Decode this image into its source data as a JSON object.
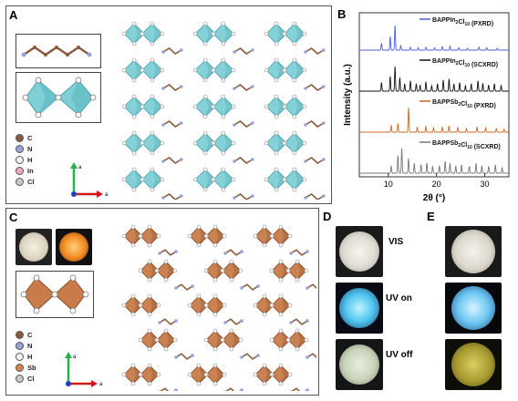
{
  "panels": {
    "a": "A",
    "b": "B",
    "c": "C",
    "d": "D",
    "e": "E"
  },
  "legend_a": [
    {
      "label": "C",
      "color": "#8a5a3c"
    },
    {
      "label": "N",
      "color": "#9aa0d8"
    },
    {
      "label": "H",
      "color": "#f2f2f2"
    },
    {
      "label": "In",
      "color": "#f0a8c8"
    },
    {
      "label": "Cl",
      "color": "#c8c8c8"
    }
  ],
  "legend_c": [
    {
      "label": "C",
      "color": "#8a5a3c"
    },
    {
      "label": "N",
      "color": "#9aa0d8"
    },
    {
      "label": "H",
      "color": "#f2f2f2"
    },
    {
      "label": "Sb",
      "color": "#d9824a"
    },
    {
      "label": "Cl",
      "color": "#c8c8c8"
    }
  ],
  "axis_labels": {
    "vertical": "a",
    "horizontal": "a"
  },
  "photo_labels": {
    "vis": "VIS",
    "uv_on": "UV on",
    "uv_off": "UV off"
  },
  "colors": {
    "in_octahedron": "#7ecfd6",
    "sb_octahedron": "#c87c4a",
    "series_in_pxrd": "#4a5fd8",
    "series_in_scxrd": "#111111",
    "series_sb_pxrd": "#d0661e",
    "series_sb_scxrd": "#777777"
  },
  "chart_data": {
    "type": "line",
    "xlabel": "2θ (°)",
    "ylabel": "Intensity (a.u.)",
    "xlim": [
      4,
      35
    ],
    "xticks": [
      10,
      20,
      30
    ],
    "series": [
      {
        "name": "BAPPIn2Cl10 (PXRD)",
        "name_main": "BAPPIn",
        "sub1": "2",
        "mid": "Cl",
        "sub2": "10",
        "suffix": " (PXRD)",
        "color": "#4a5fd8",
        "peaks": [
          [
            8.6,
            0.28
          ],
          [
            10.4,
            0.55
          ],
          [
            11.4,
            1.0
          ],
          [
            12.6,
            0.18
          ],
          [
            14.6,
            0.12
          ],
          [
            16.2,
            0.1
          ],
          [
            17.8,
            0.12
          ],
          [
            19.6,
            0.1
          ],
          [
            21.2,
            0.14
          ],
          [
            22.8,
            0.16
          ],
          [
            24.6,
            0.1
          ],
          [
            26.4,
            0.08
          ],
          [
            28.8,
            0.12
          ],
          [
            30.4,
            0.1
          ],
          [
            32.6,
            0.08
          ]
        ]
      },
      {
        "name": "BAPPIn2Cl10 (SCXRD)",
        "name_main": "BAPPIn",
        "sub1": "2",
        "mid": "Cl",
        "sub2": "10",
        "suffix": " (SCXRD)",
        "color": "#111111",
        "peaks": [
          [
            8.6,
            0.35
          ],
          [
            10.4,
            0.6
          ],
          [
            11.4,
            1.0
          ],
          [
            12.4,
            0.55
          ],
          [
            13.4,
            0.3
          ],
          [
            14.6,
            0.42
          ],
          [
            15.8,
            0.3
          ],
          [
            16.6,
            0.25
          ],
          [
            17.8,
            0.38
          ],
          [
            19.0,
            0.22
          ],
          [
            20.2,
            0.3
          ],
          [
            21.4,
            0.45
          ],
          [
            22.6,
            0.5
          ],
          [
            23.6,
            0.3
          ],
          [
            24.8,
            0.35
          ],
          [
            26.0,
            0.22
          ],
          [
            27.2,
            0.3
          ],
          [
            28.6,
            0.42
          ],
          [
            29.6,
            0.32
          ],
          [
            30.8,
            0.25
          ],
          [
            32.0,
            0.3
          ],
          [
            33.4,
            0.22
          ]
        ]
      },
      {
        "name": "BAPPSb2Cl10 (PXRD)",
        "name_main": "BAPPSb",
        "sub1": "2",
        "mid": "Cl",
        "sub2": "10",
        "suffix": " (PXRD)",
        "color": "#d0661e",
        "peaks": [
          [
            10.6,
            0.28
          ],
          [
            12.0,
            0.35
          ],
          [
            14.2,
            1.0
          ],
          [
            16.0,
            0.2
          ],
          [
            17.8,
            0.22
          ],
          [
            19.4,
            0.18
          ],
          [
            21.2,
            0.2
          ],
          [
            22.6,
            0.25
          ],
          [
            24.4,
            0.18
          ],
          [
            26.2,
            0.15
          ],
          [
            28.4,
            0.2
          ],
          [
            30.2,
            0.18
          ],
          [
            32.4,
            0.14
          ],
          [
            34.0,
            0.12
          ]
        ]
      },
      {
        "name": "BAPPSb2Cl10 (SCXRD)",
        "name_main": "BAPPSb",
        "sub1": "2",
        "mid": "Cl",
        "sub2": "10",
        "suffix": " (SCXRD)",
        "color": "#777777",
        "peaks": [
          [
            10.6,
            0.3
          ],
          [
            12.0,
            0.72
          ],
          [
            12.8,
            1.0
          ],
          [
            14.2,
            0.6
          ],
          [
            15.4,
            0.4
          ],
          [
            16.8,
            0.35
          ],
          [
            18.0,
            0.42
          ],
          [
            19.2,
            0.28
          ],
          [
            20.6,
            0.3
          ],
          [
            21.8,
            0.48
          ],
          [
            22.8,
            0.4
          ],
          [
            24.0,
            0.3
          ],
          [
            25.2,
            0.34
          ],
          [
            26.8,
            0.28
          ],
          [
            28.2,
            0.4
          ],
          [
            29.4,
            0.3
          ],
          [
            30.8,
            0.28
          ],
          [
            32.2,
            0.34
          ],
          [
            33.6,
            0.22
          ]
        ]
      }
    ]
  }
}
